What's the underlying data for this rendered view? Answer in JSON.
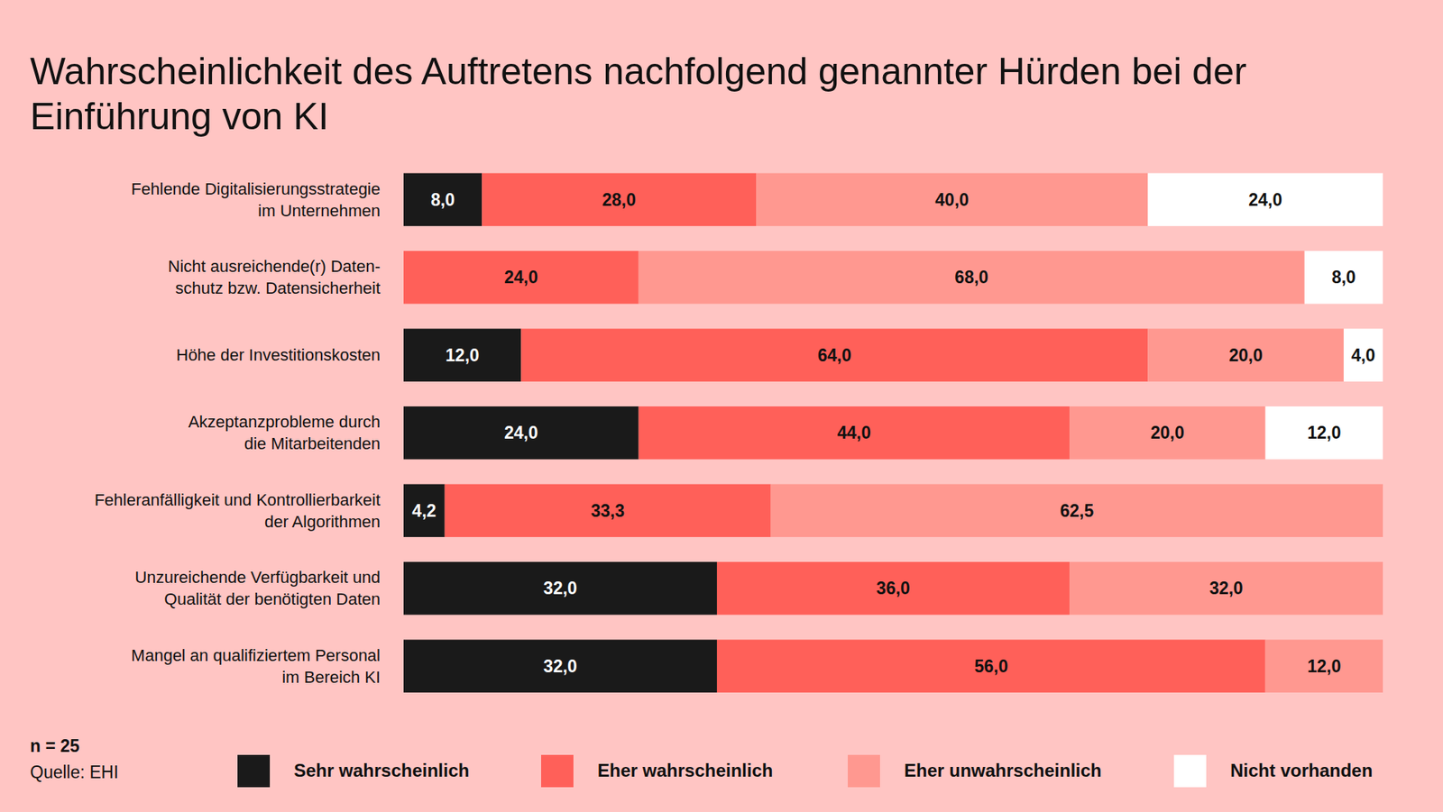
{
  "chart_data": {
    "type": "bar",
    "orientation": "horizontal",
    "stacked": true,
    "data_labels": true,
    "tick_labels": "y",
    "legend": "bottom",
    "title": "Wahrscheinlichkeit des Auftretens nachfolgend genannter Hürden bei der\nEinführung von KI",
    "annotations": [
      "n = 25",
      "Quelle: EHI"
    ],
    "categories": [
      "Fehlende Digitalisierungsstrategie\nim Unternehmen",
      "Nicht ausreichende(r) Daten-\nschutz bzw. Datensicherheit",
      "Höhe der Investitionskosten",
      "Akzeptanzprobleme durch\ndie Mitarbeitenden",
      "Fehleranfälligkeit und Kontrollierbarkeit\nder Algorithmen",
      "Unzureichende Verfügbarkeit und\nQualität der benötigten Daten",
      "Mangel an qualifiziertem Personal\nim Bereich KI"
    ],
    "xlim": [
      0,
      100
    ],
    "series": [
      {
        "name": "Sehr wahrscheinlich",
        "color": "#1a1a1a",
        "values": [
          8.0,
          null,
          12.0,
          24.0,
          4.2,
          32.0,
          32.0
        ],
        "value_labels": [
          "8,0",
          null,
          "12,0",
          "24,0",
          "4,2",
          "32,0",
          "32,0"
        ]
      },
      {
        "name": "Eher wahrscheinlich",
        "color": "#ff6059",
        "values": [
          28.0,
          24.0,
          64.0,
          44.0,
          33.3,
          36.0,
          56.0
        ],
        "value_labels": [
          "28,0",
          "24,0",
          "64,0",
          "44,0",
          "33,3",
          "36,0",
          "56,0"
        ]
      },
      {
        "name": "Eher unwahrscheinlich",
        "color": "#ff9890",
        "values": [
          40.0,
          68.0,
          20.0,
          20.0,
          62.5,
          32.0,
          12.0
        ],
        "value_labels": [
          "40,0",
          "68,0",
          "20,0",
          "20,0",
          "62,5",
          "32,0",
          "12,0"
        ]
      },
      {
        "name": "Nicht vorhanden",
        "color": "#ffffff",
        "values": [
          24.0,
          8.0,
          4.0,
          12.0,
          null,
          null,
          null
        ],
        "value_labels": [
          "24,0",
          "8,0",
          "4,0",
          "12,0",
          null,
          null,
          null
        ]
      }
    ]
  }
}
